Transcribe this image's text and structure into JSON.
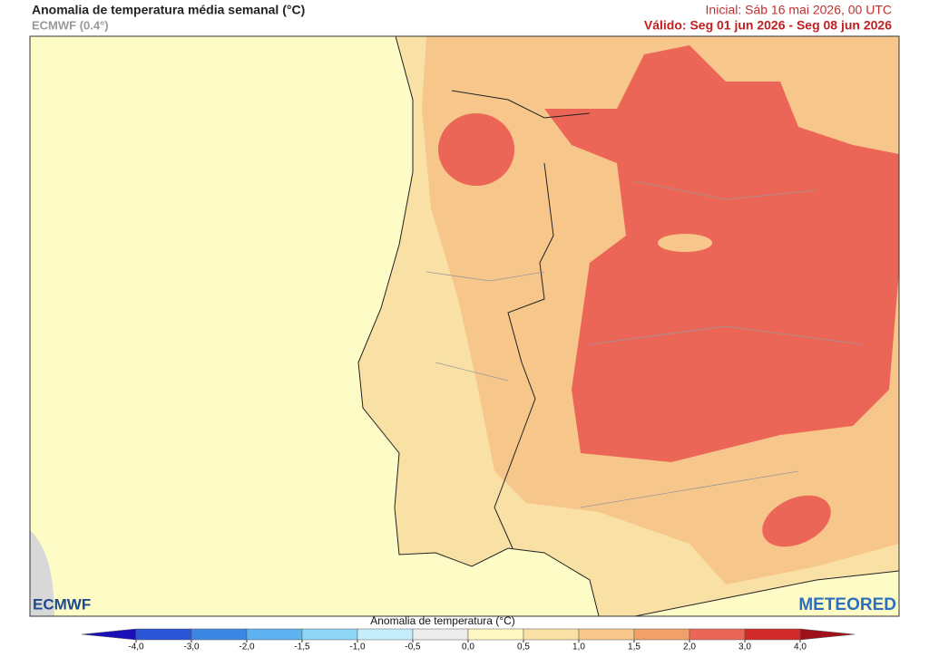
{
  "header": {
    "title": "Anomalia de temperatura média semanal (°C)",
    "model": "ECMWF (0.4°)",
    "initial": "Inicial: Sáb 16 mai 2026, 00 UTC",
    "valid": "Válido: Seg 01 jun 2026 - Seg 08 jun 2026"
  },
  "logos": {
    "left": "ECMWF",
    "right": "METEORED"
  },
  "colorbar": {
    "label": "Anomalia de temperatura (°C)",
    "ticks": [
      {
        "value": -4,
        "label": "-4,0"
      },
      {
        "value": -3,
        "label": "-3,0"
      },
      {
        "value": -2,
        "label": "-2,0"
      },
      {
        "value": -1.5,
        "label": "-1,5"
      },
      {
        "value": -1,
        "label": "-1,0"
      },
      {
        "value": -0.5,
        "label": "-0,5"
      },
      {
        "value": 0,
        "label": "0,0"
      },
      {
        "value": 0.5,
        "label": "0,5"
      },
      {
        "value": 1,
        "label": "1,0"
      },
      {
        "value": 1.5,
        "label": "1,5"
      },
      {
        "value": 2,
        "label": "2,0"
      },
      {
        "value": 3,
        "label": "3,0"
      },
      {
        "value": 4,
        "label": "4,0"
      }
    ],
    "colors": [
      "#1a10b8",
      "#2a55d6",
      "#3c86e4",
      "#5fb2f0",
      "#8fd6f6",
      "#c6eefa",
      "#ececec",
      "#fdf8c4",
      "#f9e1a6",
      "#f7c68a",
      "#f2a06a",
      "#ec6658",
      "#d12a2a",
      "#a0101a"
    ]
  }
}
